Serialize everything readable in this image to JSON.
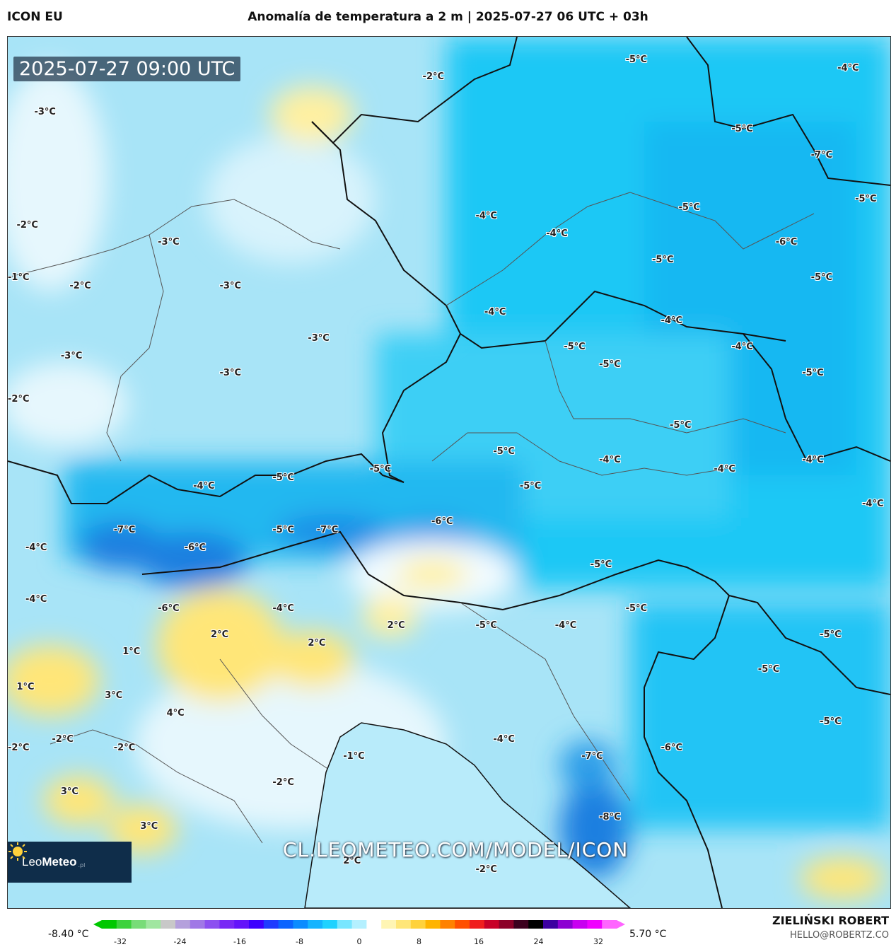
{
  "header": {
    "model": "ICON EU",
    "title": "Anomalía de temperatura a 2 m | 2025-07-27 06 UTC + 03h"
  },
  "map": {
    "timestamp": "2025-07-27 09:00 UTC",
    "watermark": "CL.LEOMETEO.COM/MODEL/ICON",
    "logo": {
      "name_light": "Leo",
      "name_bold": "Meteo",
      "suffix": ".pl"
    },
    "contour_labels": [
      {
        "text": "-3°C",
        "x": 3,
        "y": 8
      },
      {
        "text": "-2°C",
        "x": 47,
        "y": 4
      },
      {
        "text": "-5°C",
        "x": 70,
        "y": 2
      },
      {
        "text": "-4°C",
        "x": 94,
        "y": 3
      },
      {
        "text": "-5°C",
        "x": 82,
        "y": 10
      },
      {
        "text": "-7°C",
        "x": 91,
        "y": 13
      },
      {
        "text": "-5°C",
        "x": 96,
        "y": 18
      },
      {
        "text": "-2°C",
        "x": 1,
        "y": 21
      },
      {
        "text": "-3°C",
        "x": 17,
        "y": 23
      },
      {
        "text": "-4°C",
        "x": 53,
        "y": 20
      },
      {
        "text": "-4°C",
        "x": 61,
        "y": 22
      },
      {
        "text": "-5°C",
        "x": 76,
        "y": 19
      },
      {
        "text": "-6°C",
        "x": 87,
        "y": 23
      },
      {
        "text": "-5°C",
        "x": 73,
        "y": 25
      },
      {
        "text": "-5°C",
        "x": 91,
        "y": 27
      },
      {
        "text": "-1°C",
        "x": 0,
        "y": 27
      },
      {
        "text": "-2°C",
        "x": 7,
        "y": 28
      },
      {
        "text": "-3°C",
        "x": 24,
        "y": 28
      },
      {
        "text": "-4°C",
        "x": 54,
        "y": 31
      },
      {
        "text": "-4°C",
        "x": 74,
        "y": 32
      },
      {
        "text": "-5°C",
        "x": 63,
        "y": 35
      },
      {
        "text": "-4°C",
        "x": 82,
        "y": 35
      },
      {
        "text": "-3°C",
        "x": 34,
        "y": 34
      },
      {
        "text": "-3°C",
        "x": 6,
        "y": 36
      },
      {
        "text": "-3°C",
        "x": 24,
        "y": 38
      },
      {
        "text": "-5°C",
        "x": 67,
        "y": 37
      },
      {
        "text": "-5°C",
        "x": 90,
        "y": 38
      },
      {
        "text": "-2°C",
        "x": 0,
        "y": 41
      },
      {
        "text": "-5°C",
        "x": 75,
        "y": 44
      },
      {
        "text": "-5°C",
        "x": 55,
        "y": 47
      },
      {
        "text": "-4°C",
        "x": 67,
        "y": 48
      },
      {
        "text": "-4°C",
        "x": 80,
        "y": 49
      },
      {
        "text": "-4°C",
        "x": 90,
        "y": 48
      },
      {
        "text": "-5°C",
        "x": 41,
        "y": 49
      },
      {
        "text": "-5°C",
        "x": 30,
        "y": 50
      },
      {
        "text": "-4°C",
        "x": 21,
        "y": 51
      },
      {
        "text": "-5°C",
        "x": 58,
        "y": 51
      },
      {
        "text": "-4°C",
        "x": 98,
        "y": 53
      },
      {
        "text": "-7°C",
        "x": 12,
        "y": 56
      },
      {
        "text": "-5°C",
        "x": 30,
        "y": 56
      },
      {
        "text": "-7°C",
        "x": 35,
        "y": 56
      },
      {
        "text": "-6°C",
        "x": 48,
        "y": 55
      },
      {
        "text": "-4°C",
        "x": 2,
        "y": 58
      },
      {
        "text": "-6°C",
        "x": 20,
        "y": 58
      },
      {
        "text": "-5°C",
        "x": 66,
        "y": 60
      },
      {
        "text": "-4°C",
        "x": 2,
        "y": 64
      },
      {
        "text": "-6°C",
        "x": 17,
        "y": 65
      },
      {
        "text": "-4°C",
        "x": 30,
        "y": 65
      },
      {
        "text": "-5°C",
        "x": 70,
        "y": 65
      },
      {
        "text": "2°C",
        "x": 23,
        "y": 68
      },
      {
        "text": "2°C",
        "x": 43,
        "y": 67
      },
      {
        "text": "-5°C",
        "x": 53,
        "y": 67
      },
      {
        "text": "-4°C",
        "x": 62,
        "y": 67
      },
      {
        "text": "-5°C",
        "x": 92,
        "y": 68
      },
      {
        "text": "1°C",
        "x": 13,
        "y": 70
      },
      {
        "text": "2°C",
        "x": 34,
        "y": 69
      },
      {
        "text": "-5°C",
        "x": 85,
        "y": 72
      },
      {
        "text": "1°C",
        "x": 1,
        "y": 74
      },
      {
        "text": "3°C",
        "x": 11,
        "y": 75
      },
      {
        "text": "4°C",
        "x": 18,
        "y": 77
      },
      {
        "text": "-5°C",
        "x": 92,
        "y": 78
      },
      {
        "text": "-2°C",
        "x": 0,
        "y": 81
      },
      {
        "text": "-2°C",
        "x": 5,
        "y": 80
      },
      {
        "text": "-2°C",
        "x": 12,
        "y": 81
      },
      {
        "text": "-4°C",
        "x": 55,
        "y": 80
      },
      {
        "text": "-6°C",
        "x": 74,
        "y": 81
      },
      {
        "text": "-7°C",
        "x": 65,
        "y": 82
      },
      {
        "text": "-1°C",
        "x": 38,
        "y": 82
      },
      {
        "text": "-2°C",
        "x": 30,
        "y": 85
      },
      {
        "text": "3°C",
        "x": 6,
        "y": 86
      },
      {
        "text": "3°C",
        "x": 15,
        "y": 90
      },
      {
        "text": "-8°C",
        "x": 67,
        "y": 89
      },
      {
        "text": "2°C",
        "x": 38,
        "y": 94
      },
      {
        "text": "-2°C",
        "x": 53,
        "y": 95
      }
    ]
  },
  "colorbar": {
    "min_label": "-8.40 °C",
    "max_label": "5.70 °C",
    "ticks": [
      "-32",
      "-24",
      "-16",
      "-8",
      "0",
      "8",
      "16",
      "24",
      "32"
    ],
    "colors": [
      "#00c800",
      "#3cd23c",
      "#78dc78",
      "#a0e6a0",
      "#c8c8c8",
      "#b4a0dc",
      "#a078e6",
      "#8c50f0",
      "#7828f5",
      "#6414fa",
      "#3c00ff",
      "#1e3cff",
      "#0a64ff",
      "#0a8cff",
      "#14b4ff",
      "#1ed2ff",
      "#78e6ff",
      "#b4f0ff",
      "#ffffff",
      "#fff5b4",
      "#ffe678",
      "#ffd23c",
      "#ffb400",
      "#ff8200",
      "#ff5000",
      "#f01e1e",
      "#c80028",
      "#8c0028",
      "#3c001e",
      "#000000",
      "#3c00a0",
      "#8c00d2",
      "#c800f0",
      "#f000ff",
      "#ff64ff"
    ]
  },
  "footer": {
    "author": "ZIELIŃSKI ROBERT",
    "email": "HELLO@ROBERTZ.CO"
  }
}
